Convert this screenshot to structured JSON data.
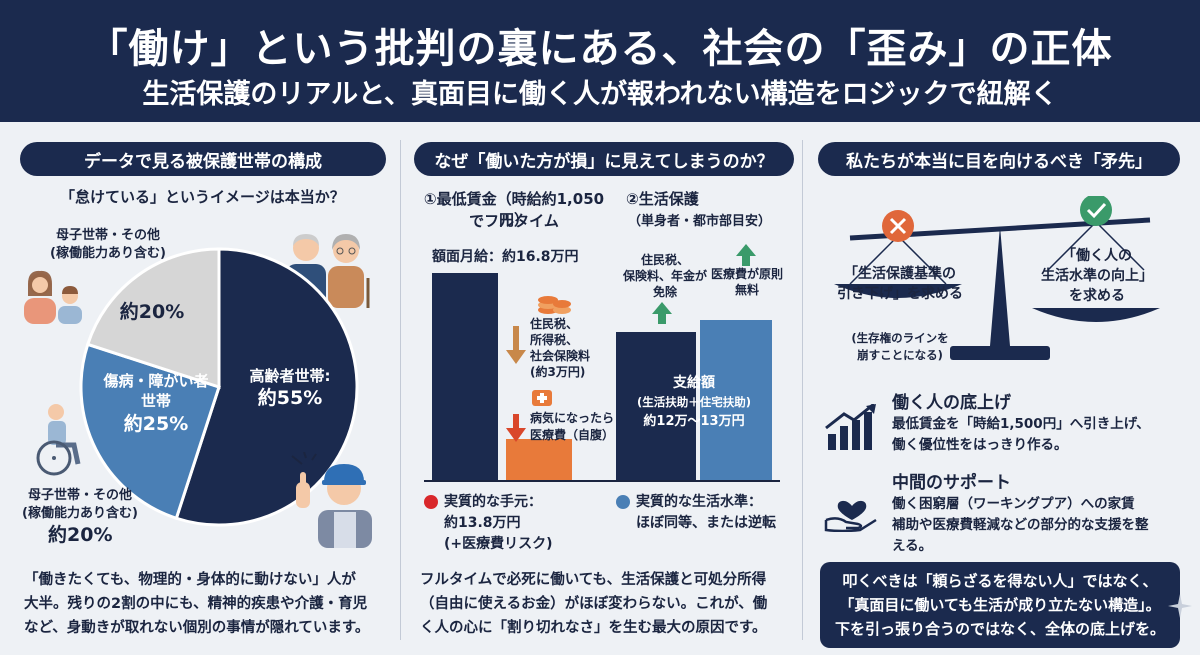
{
  "header": {
    "title": "「働け」という批判の裏にある、社会の「歪み」の正体",
    "subtitle": "生活保護のリアルと、真面目に働く人が報われない構造をロジックで紐解く"
  },
  "panel1": {
    "heading": "データで見る被保護世帯の構成",
    "question": "「怠けている」というイメージは本当か？",
    "top_left_label_1": "母子世帯・その他",
    "top_left_label_2": "(稼働能力あり含む)",
    "bottom_left_label_1": "母子世帯・その他",
    "bottom_left_label_2": "(稼働能力あり含む)",
    "bottom_left_value": "約20%",
    "slices": [
      {
        "label_1": "高齢者世帯:",
        "label_2": "約55%",
        "value": 55,
        "color": "#1b2a4e"
      },
      {
        "label_1": "傷病・障がい者",
        "label_2": "世帯",
        "label_3": "約25%",
        "value": 25,
        "color": "#4a7fb5"
      },
      {
        "label_1": "約20%",
        "value": 20,
        "color": "#d6d6d6"
      }
    ],
    "body_1": "「働きたくても、物理的・身体的に動けない」人が",
    "body_2": "大半。残りの2割の中にも、精神的疾患や介護・育児",
    "body_3": "など、身動きが取れない個別の事情が隠れています。"
  },
  "panel2": {
    "heading": "なぜ「働いた方が損」に見えてしまうのか？",
    "col1_title_1": "①最低賃金（時給約1,050円）",
    "col1_title_2": "でフルタイム",
    "col1_gross": "額面月給：約16.8万円",
    "col1_tax_1": "住民税、",
    "col1_tax_2": "所得税、",
    "col1_tax_3": "社会保険料",
    "col1_tax_4": "(約3万円)",
    "col1_medical_1": "病気になったら",
    "col1_medical_2": "医療費（自腹）",
    "col1_result_1": "実質的な手元：",
    "col1_result_2": "約13.8万円",
    "col1_result_3": "(+医療費リスク)",
    "col2_title_1": "②生活保護",
    "col2_title_2": "（単身者・都市部目安）",
    "col2_exempt_1": "住民税、",
    "col2_exempt_2": "保険料、年金が",
    "col2_exempt_3": "免除",
    "col2_free_1": "医療費が原則",
    "col2_free_2": "無料",
    "col2_bar_1": "支給額",
    "col2_bar_2": "(生活扶助＋住宅扶助)",
    "col2_bar_3": "約12万〜13万円",
    "col2_result_1": "実質的な生活水準：",
    "col2_result_2": "ほぼ同等、または逆転",
    "body_1": "フルタイムで必死に働いても、生活保護と可処分所得",
    "body_2": "（自由に使えるお金）がほぼ変わらない。これが、働",
    "body_3": "く人の心に「割り切れなさ」を生む最大の原因です。",
    "bars": {
      "gross": 16.8,
      "net": 13.8,
      "medical": 1.5,
      "welfare_dark": 12,
      "welfare_light": 13
    }
  },
  "panel3": {
    "heading": "私たちが本当に目を向けるべき「矛先」",
    "left_pan_1": "「生活保護基準の",
    "left_pan_2": "引き下げ」を求める",
    "left_note_1": "(生存権のラインを",
    "left_note_2": "崩すことになる)",
    "right_pan_1": "「働く人の",
    "right_pan_2": "生活水準の向上」",
    "right_pan_3": "を求める",
    "point1_title": "働く人の底上げ",
    "point1_body_1": "最低賃金を「時給1,500円」へ引き上げ、",
    "point1_body_2": "働く優位性をはっきり作る。",
    "point2_title": "中間のサポート",
    "point2_body_1": "働く困窮層（ワーキングプア）への家賃",
    "point2_body_2": "補助や医療費軽減などの部分的な支援を整",
    "point2_body_3": "える。",
    "box_1": "叩くべきは「頼らざるを得ない人」ではなく、",
    "box_2": "「真面目に働いても生活が成り立たない構造」。",
    "box_3": "下を引っ張り合うのではなく、全体の底上げを。"
  }
}
